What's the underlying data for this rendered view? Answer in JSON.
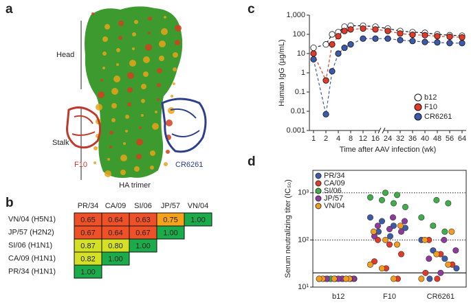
{
  "panel_labels": [
    "a",
    "b",
    "c",
    "d"
  ],
  "structure": {
    "head": "Head",
    "stalk": "Stalk",
    "left_antibody": "F10",
    "right_antibody": "CR6261",
    "caption": "HA trimer"
  },
  "table": {
    "columns": [
      "PR/34",
      "CA/09",
      "SI/06",
      "JP/57",
      "VN/04"
    ],
    "rows": [
      {
        "label": "VN/04 (H5N1)",
        "cells": [
          "0.65",
          "0.64",
          "0.63",
          "0.75",
          "1.00"
        ]
      },
      {
        "label": "JP/57 (H2N2)",
        "cells": [
          "0.67",
          "0.64",
          "0.67",
          "1.00"
        ]
      },
      {
        "label": "SI/06 (H1N1)",
        "cells": [
          "0.87",
          "0.80",
          "1.00"
        ]
      },
      {
        "label": "CA/09 (H1N1)",
        "cells": [
          "0.82",
          "1.00"
        ]
      },
      {
        "label": "PR/34 (H1N1)",
        "cells": [
          "1.00"
        ]
      }
    ]
  },
  "chart_data": [
    {
      "type": "line",
      "x_label": "Time after AAV infection (wk)",
      "y_label": "Human IgG (µg/mL)",
      "x": [
        1,
        2,
        3,
        4,
        6,
        8,
        12,
        16,
        24,
        32,
        36,
        40,
        48,
        56,
        64
      ],
      "xlim": [
        1,
        64
      ],
      "xticks": [
        1,
        2,
        4,
        8,
        12,
        16,
        24,
        32,
        36,
        40,
        48,
        56,
        64
      ],
      "ylim": [
        0.001,
        1000
      ],
      "log_y": true,
      "yticks": [
        0.001,
        0.01,
        0.1,
        1,
        10,
        100,
        {
          "value": 1000,
          "label": "1,000"
        }
      ],
      "legend": "lower right",
      "series": [
        {
          "name": "b12",
          "color": "#ffffff",
          "line_color": "#111111",
          "values": [
            20,
            30,
            100,
            130,
            250,
            280,
            280,
            250,
            200,
            150,
            130,
            120,
            100,
            90,
            85
          ]
        },
        {
          "name": "F10",
          "color": "#e03a2a",
          "line_color": "#e03a2a",
          "values": [
            10,
            0.4,
            30,
            80,
            150,
            180,
            200,
            180,
            150,
            110,
            95,
            90,
            80,
            75,
            70
          ]
        },
        {
          "name": "CR6261",
          "color": "#3d5aa8",
          "line_color": "#3d5aa8",
          "values": [
            5,
            0.007,
            1.2,
            10,
            20,
            30,
            60,
            60,
            60,
            50,
            45,
            40,
            38,
            35,
            35
          ]
        }
      ]
    },
    {
      "type": "strip",
      "y_label": "Serum neutralizing titer (IC₅₀)",
      "categories": [
        "b12",
        "F10",
        "CR6261"
      ],
      "ylim": [
        10,
        3000
      ],
      "log_y": true,
      "yticks": [
        {
          "value": 10,
          "label": "10¹"
        },
        {
          "value": 100,
          "label": "10²"
        },
        {
          "value": 1000,
          "label": "10³"
        }
      ],
      "dotted_lines": [
        100,
        1000
      ],
      "detection_limit": 20,
      "legend": "upper left",
      "series": [
        {
          "name": "PR/34",
          "color": "#3d5aa8",
          "values": [
            [
              15,
              15,
              15,
              15,
              15
            ],
            [
              300,
              250,
              200,
              180,
              150,
              120
            ],
            [
              100,
              60,
              40,
              25,
              15
            ]
          ]
        },
        {
          "name": "CA/09",
          "color": "#e03a2a",
          "values": [
            [
              15,
              15,
              15,
              15,
              15
            ],
            [
              100,
              80,
              50,
              35,
              25,
              15
            ],
            [
              100,
              50,
              30,
              20,
              15
            ]
          ]
        },
        {
          "name": "SI/06",
          "color": "#3fae49",
          "values": [
            [
              15,
              15,
              15,
              15,
              15
            ],
            [
              1000,
              900,
              800,
              700,
              600,
              500
            ],
            [
              700,
              600,
              300,
              200,
              150
            ]
          ]
        },
        {
          "name": "JP/57",
          "color": "#8e3a9d",
          "values": [
            [
              15,
              15,
              15,
              15,
              15
            ],
            [
              300,
              250,
              200,
              170,
              150,
              120
            ],
            [
              100,
              60,
              40,
              20
            ]
          ]
        },
        {
          "name": "VN/04",
          "color": "#f39c1f",
          "values": [
            [
              15,
              15,
              15,
              15,
              15
            ],
            [
              200,
              150,
              100,
              80,
              30,
              25,
              15
            ],
            [
              150,
              100,
              50,
              30,
              15
            ]
          ]
        }
      ]
    }
  ]
}
